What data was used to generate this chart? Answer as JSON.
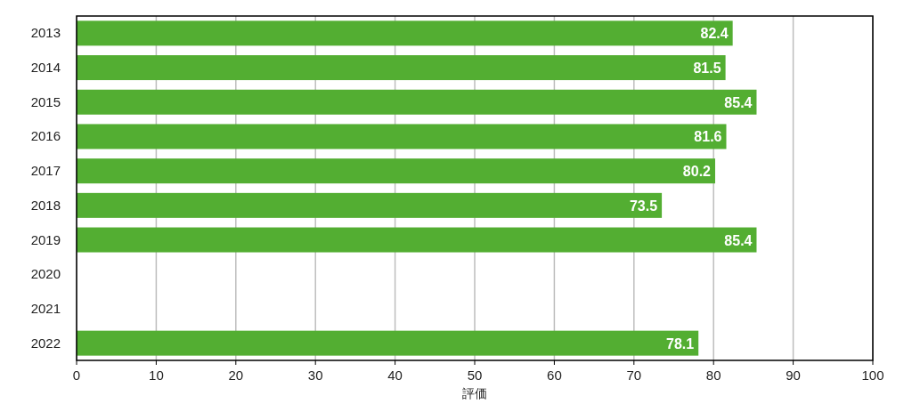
{
  "chart_data": {
    "type": "bar",
    "orientation": "horizontal",
    "categories": [
      "2013",
      "2014",
      "2015",
      "2016",
      "2017",
      "2018",
      "2019",
      "2020",
      "2021",
      "2022"
    ],
    "values": [
      82.4,
      81.5,
      85.4,
      81.6,
      80.2,
      73.5,
      85.4,
      null,
      null,
      78.1
    ],
    "color": "#53ae32",
    "xlim": [
      0,
      100
    ],
    "xticks": [
      0,
      10,
      20,
      30,
      40,
      50,
      60,
      70,
      80,
      90,
      100
    ],
    "xlabel": "評価",
    "grid": "x",
    "data_labels": true
  }
}
